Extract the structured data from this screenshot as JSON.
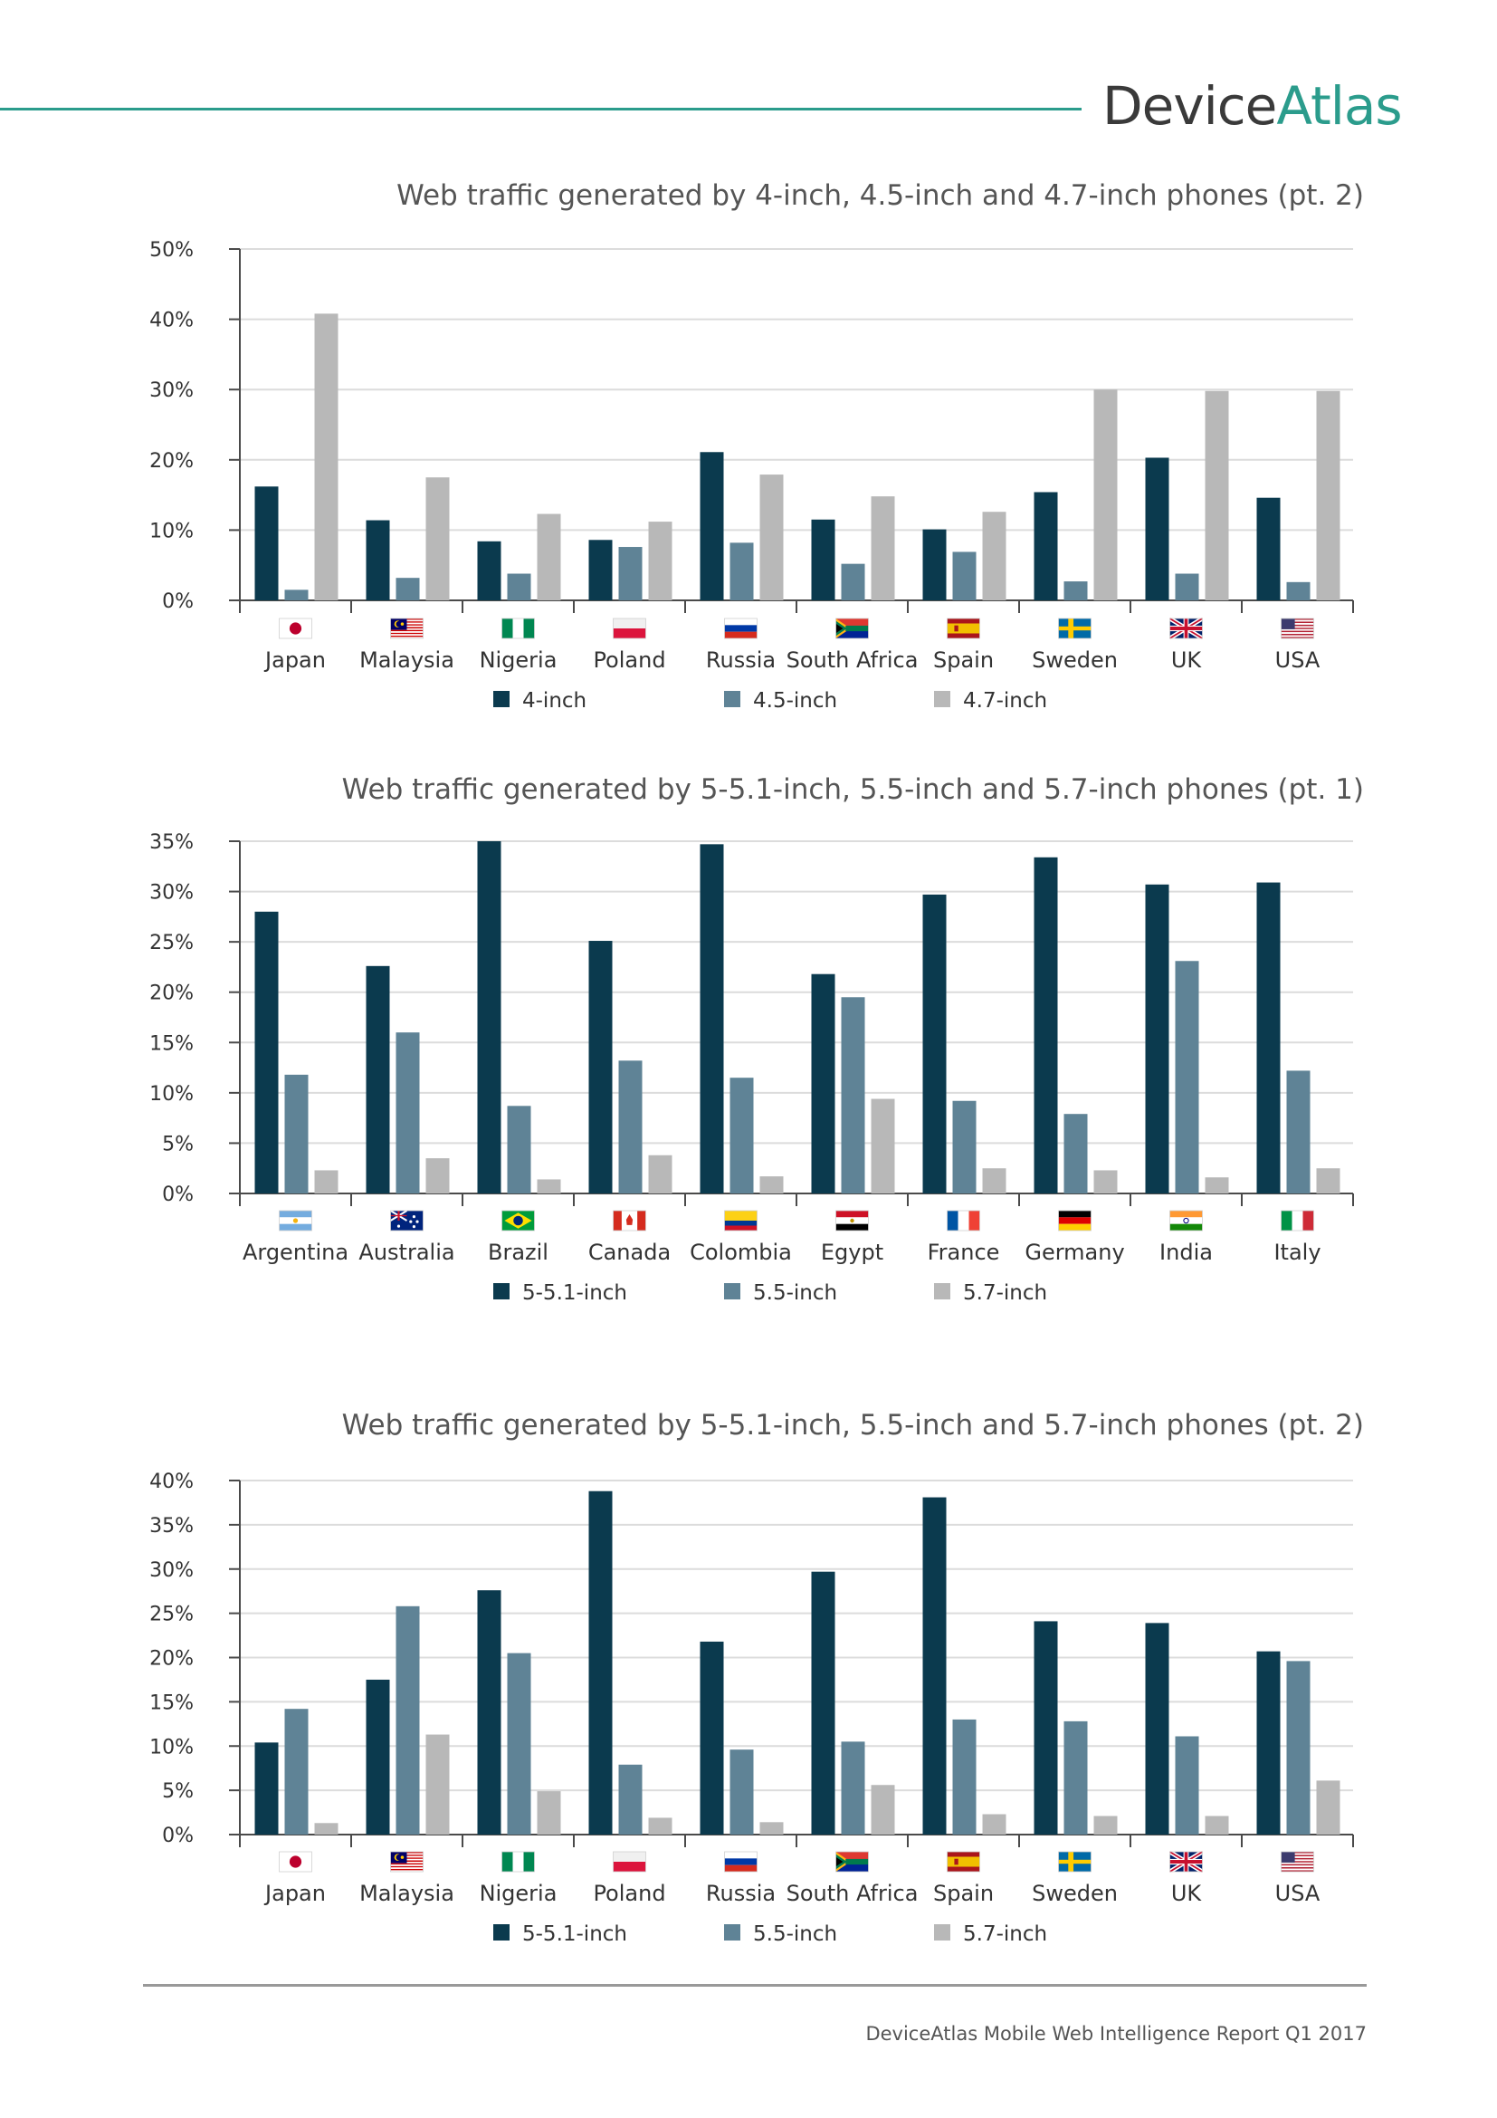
{
  "brand": {
    "name_part1": "Device",
    "name_part2": "Atlas",
    "accent": "#2b9c8c"
  },
  "footer": {
    "text": "DeviceAtlas Mobile Web Intelligence Report Q1 2017"
  },
  "colors": {
    "series": [
      "#0b3a4e",
      "#5f8396",
      "#b8b8b8"
    ],
    "grid": "#dcdcdc",
    "axis": "#4a4a4a"
  },
  "chart_data": [
    {
      "type": "bar",
      "title": "Web traffic generated by 4-inch, 4.5-inch and 4.7-inch phones (pt. 2)",
      "categories": [
        "Japan",
        "Malaysia",
        "Nigeria",
        "Poland",
        "Russia",
        "South Africa",
        "Spain",
        "Sweden",
        "UK",
        "USA"
      ],
      "flags": [
        "japan",
        "malaysia",
        "nigeria",
        "poland",
        "russia",
        "south-africa",
        "spain",
        "sweden",
        "uk",
        "usa"
      ],
      "series": [
        {
          "name": "4-inch",
          "values": [
            16.2,
            11.4,
            8.4,
            8.6,
            21.1,
            11.5,
            10.1,
            15.4,
            20.3,
            14.6
          ]
        },
        {
          "name": "4.5-inch",
          "values": [
            1.5,
            3.2,
            3.8,
            7.6,
            8.2,
            5.2,
            6.9,
            2.7,
            3.8,
            2.6
          ]
        },
        {
          "name": "4.7-inch",
          "values": [
            40.8,
            17.5,
            12.3,
            11.2,
            17.9,
            14.8,
            12.6,
            30.0,
            29.8,
            29.8
          ]
        }
      ],
      "yticks": [
        "0%",
        "10%",
        "20%",
        "30%",
        "40%",
        "50%"
      ],
      "ylim": [
        0,
        50
      ],
      "xlabel": "",
      "ylabel": "",
      "grid": true,
      "legend": "bottom-center"
    },
    {
      "type": "bar",
      "title": "Web traffic generated by 5-5.1-inch, 5.5-inch and 5.7-inch phones (pt. 1)",
      "categories": [
        "Argentina",
        "Australia",
        "Brazil",
        "Canada",
        "Colombia",
        "Egypt",
        "France",
        "Germany",
        "India",
        "Italy"
      ],
      "flags": [
        "argentina",
        "australia",
        "brazil",
        "canada",
        "colombia",
        "egypt",
        "france",
        "germany",
        "india",
        "italy"
      ],
      "series": [
        {
          "name": "5-5.1-inch",
          "values": [
            28.0,
            22.6,
            35.0,
            25.1,
            34.7,
            21.8,
            29.7,
            33.4,
            30.7,
            30.9
          ]
        },
        {
          "name": "5.5-inch",
          "values": [
            11.8,
            16.0,
            8.7,
            13.2,
            11.5,
            19.5,
            9.2,
            7.9,
            23.1,
            12.2
          ]
        },
        {
          "name": "5.7-inch",
          "values": [
            2.3,
            3.5,
            1.4,
            3.8,
            1.7,
            9.4,
            2.5,
            2.3,
            1.6,
            2.5
          ]
        }
      ],
      "yticks": [
        "0%",
        "5%",
        "10%",
        "15%",
        "20%",
        "25%",
        "30%",
        "35%"
      ],
      "ylim": [
        0,
        35
      ],
      "xlabel": "",
      "ylabel": "",
      "grid": true,
      "legend": "bottom-center"
    },
    {
      "type": "bar",
      "title": "Web traffic generated by 5-5.1-inch, 5.5-inch and 5.7-inch phones (pt. 2)",
      "categories": [
        "Japan",
        "Malaysia",
        "Nigeria",
        "Poland",
        "Russia",
        "South Africa",
        "Spain",
        "Sweden",
        "UK",
        "USA"
      ],
      "flags": [
        "japan",
        "malaysia",
        "nigeria",
        "poland",
        "russia",
        "south-africa",
        "spain",
        "sweden",
        "uk",
        "usa"
      ],
      "series": [
        {
          "name": "5-5.1-inch",
          "values": [
            10.4,
            17.5,
            27.6,
            38.8,
            21.8,
            29.7,
            38.1,
            24.1,
            23.9,
            20.7
          ]
        },
        {
          "name": "5.5-inch",
          "values": [
            14.2,
            25.8,
            20.5,
            7.9,
            9.6,
            10.5,
            13.0,
            12.8,
            11.1,
            19.6
          ]
        },
        {
          "name": "5.7-inch",
          "values": [
            1.3,
            11.3,
            4.9,
            1.9,
            1.4,
            5.6,
            2.3,
            2.1,
            2.1,
            6.1
          ]
        }
      ],
      "yticks": [
        "0%",
        "5%",
        "10%",
        "15%",
        "20%",
        "25%",
        "30%",
        "35%",
        "40%"
      ],
      "ylim": [
        0,
        40
      ],
      "xlabel": "",
      "ylabel": "",
      "grid": true,
      "legend": "bottom-center"
    }
  ]
}
